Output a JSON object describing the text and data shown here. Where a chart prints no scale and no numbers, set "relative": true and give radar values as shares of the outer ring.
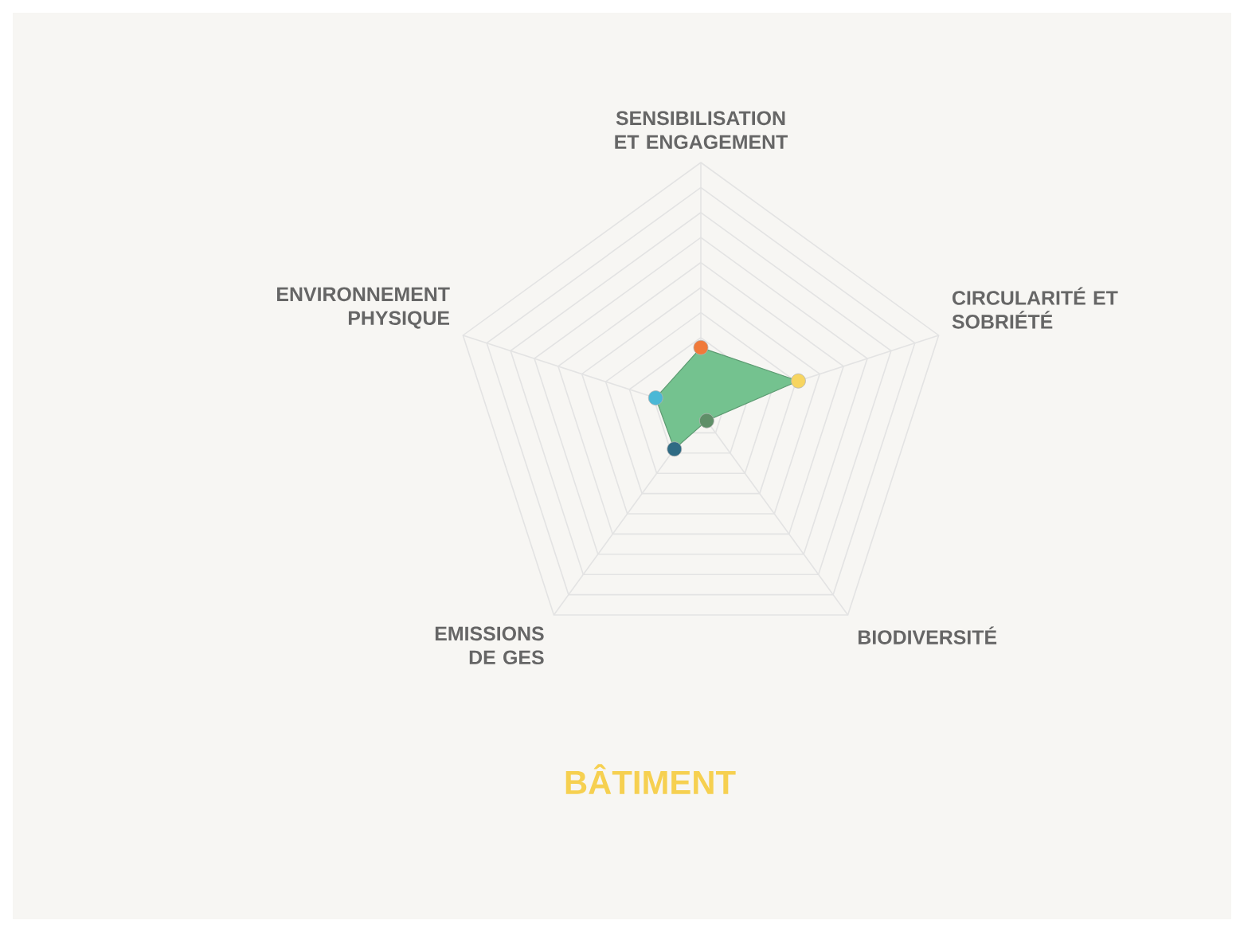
{
  "chart_data": {
    "type": "radar",
    "title": "BÂTIMENT",
    "relative": true,
    "grid": true,
    "marker": "circle",
    "categories": [
      "SENSIBILISATION ET ENGAGEMENT",
      "CIRCULARITÉ ET SOBRIÉTÉ",
      "BIODIVERSITÉ",
      "EMISSIONS DE GES",
      "ENVIRONNEMENT PHYSIQUE"
    ],
    "series": [
      {
        "color": "#74c28f",
        "colors": [
          "#f07a3a",
          "#f7d560",
          "#5f8f68",
          "#2f6b84",
          "#4bb8d6"
        ],
        "values": [
          0.26,
          0.41,
          0.04,
          0.18,
          0.19
        ]
      }
    ]
  }
}
